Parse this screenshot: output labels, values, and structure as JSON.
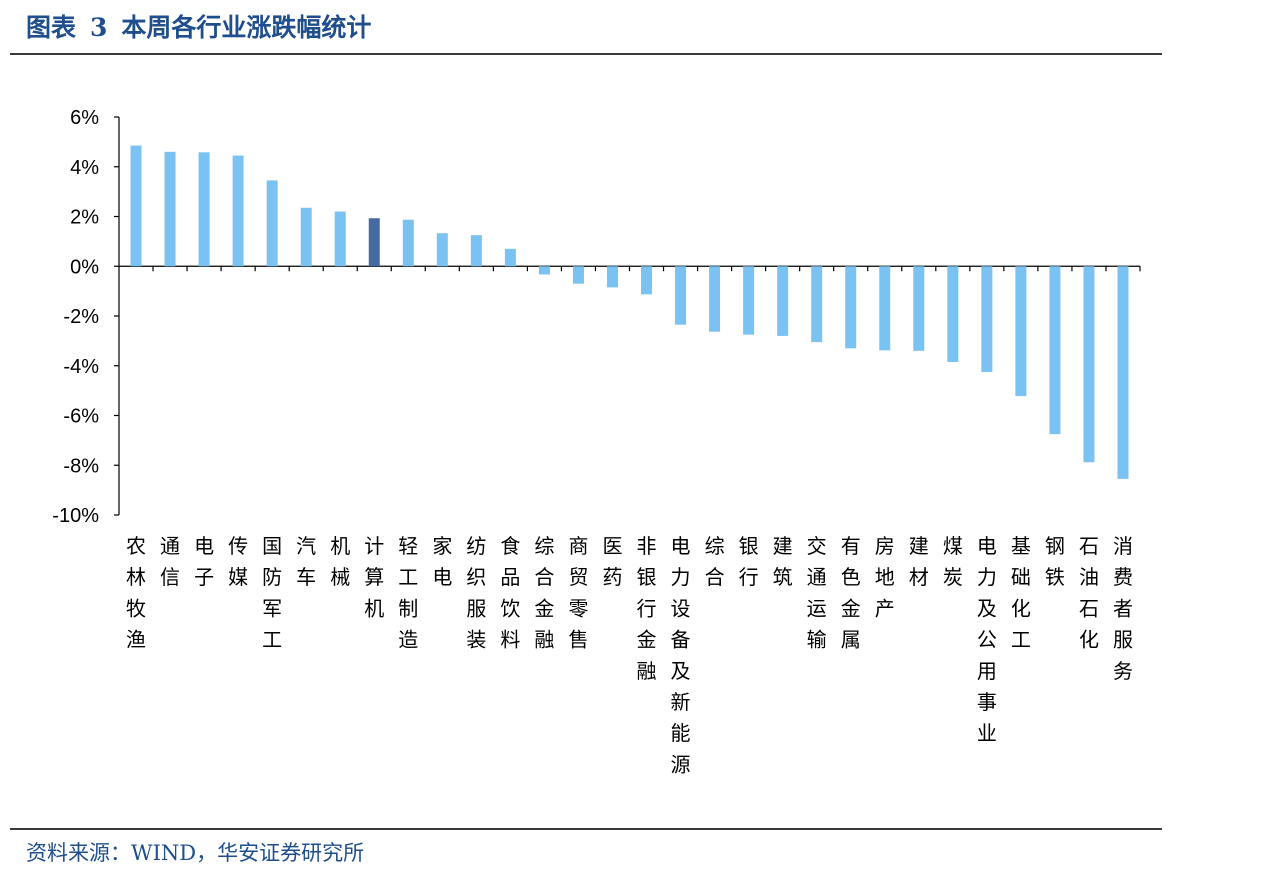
{
  "header": {
    "label": "图表",
    "number": "3",
    "text": "本周各行业涨跌幅统计"
  },
  "footer": {
    "source": "资料来源：WIND，华安证券研究所"
  },
  "colors": {
    "bar": "#79c2f1",
    "highlight": "#46699f",
    "title": "#1f4e8c"
  },
  "chart_data": {
    "type": "bar",
    "categories": [
      "农林牧渔",
      "通信",
      "电子",
      "传媒",
      "国防军工",
      "汽车",
      "机械",
      "计算机",
      "轻工制造",
      "家电",
      "纺织服装",
      "食品饮料",
      "综合金融",
      "商贸零售",
      "医药",
      "非银行金融",
      "电力设备及新能源",
      "综合",
      "银行",
      "建筑",
      "交通运输",
      "有色金属",
      "房地产",
      "建材",
      "煤炭",
      "电力及公用事业",
      "基础化工",
      "钢铁",
      "石油石化",
      "消费者服务"
    ],
    "values": [
      4.85,
      4.6,
      4.58,
      4.45,
      3.45,
      2.35,
      2.2,
      1.93,
      1.87,
      1.33,
      1.25,
      0.7,
      -0.33,
      -0.7,
      -0.85,
      -1.13,
      -2.35,
      -2.63,
      -2.75,
      -2.8,
      -3.05,
      -3.3,
      -3.38,
      -3.4,
      -3.85,
      -4.25,
      -5.22,
      -6.75,
      -7.88,
      -8.55
    ],
    "highlight_category": "计算机",
    "y_ticks": [
      "6%",
      "4%",
      "2%",
      "0%",
      "-2%",
      "-4%",
      "-6%",
      "-8%",
      "-10%"
    ],
    "ylim": [
      -10,
      6
    ],
    "title": "",
    "xlabel": "",
    "ylabel": "",
    "grid": false,
    "legend": "none"
  }
}
